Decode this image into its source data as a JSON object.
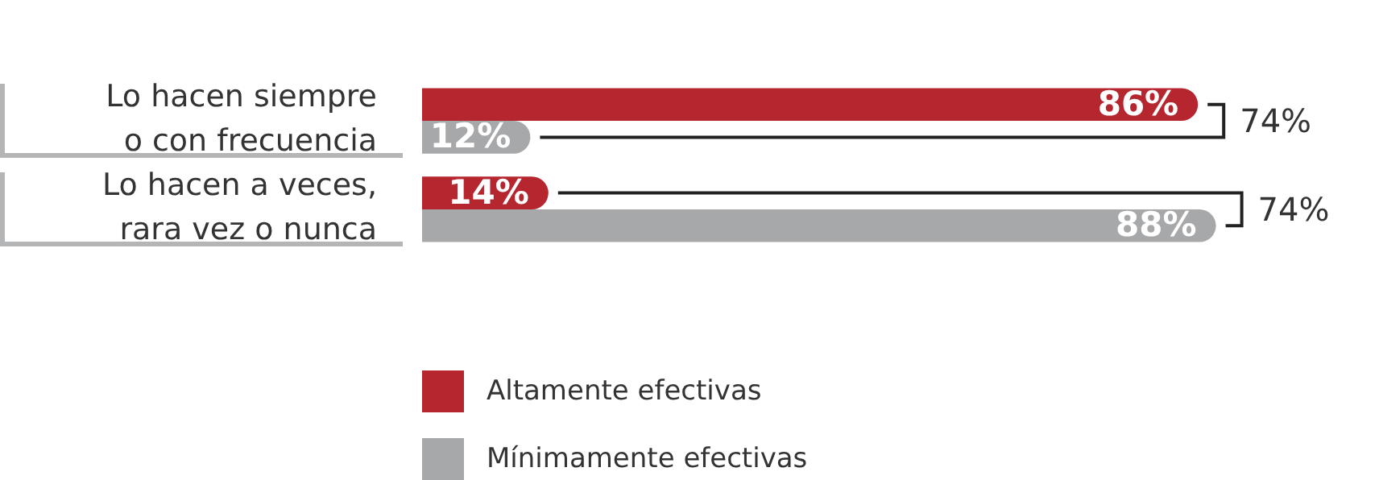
{
  "chart_data": {
    "type": "bar",
    "orientation": "horizontal",
    "categories": [
      "Lo hacen siempre\no con frecuencia",
      "Lo hacen a veces,\nrara vez o nunca"
    ],
    "series": [
      {
        "name": "Altamente efectivas",
        "color": "#b5262f",
        "values": [
          86,
          14
        ],
        "value_labels": [
          "86%",
          "14%"
        ]
      },
      {
        "name": "Mínimamente efectivas",
        "color": "#a7a8aa",
        "values": [
          12,
          88
        ],
        "value_labels": [
          "12%",
          "88%"
        ]
      }
    ],
    "annotations": [
      "74%",
      "74%"
    ],
    "legend": "bottom"
  }
}
